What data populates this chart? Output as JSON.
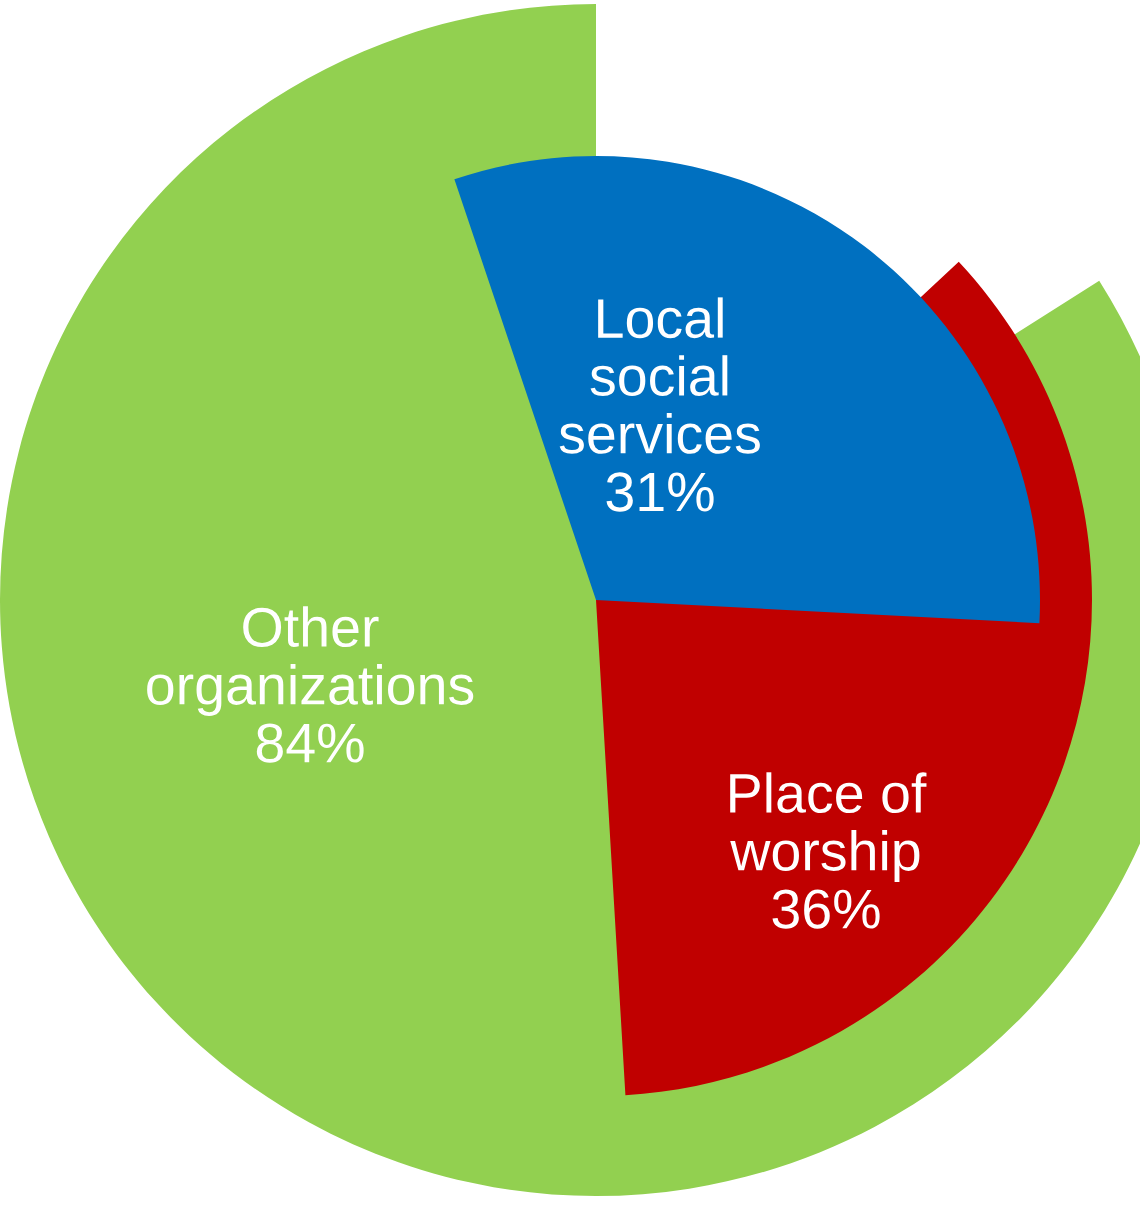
{
  "chart_data": {
    "type": "other",
    "categories": [
      "Other\norganizations",
      "Place of\nworship",
      "Local\nsocial\nservices"
    ],
    "values": [
      84,
      36,
      31
    ],
    "colors": [
      "#92d050",
      "#c00000",
      "#0070c0"
    ],
    "value_labels": [
      "84%",
      "36%",
      "31%"
    ],
    "legend": false
  }
}
